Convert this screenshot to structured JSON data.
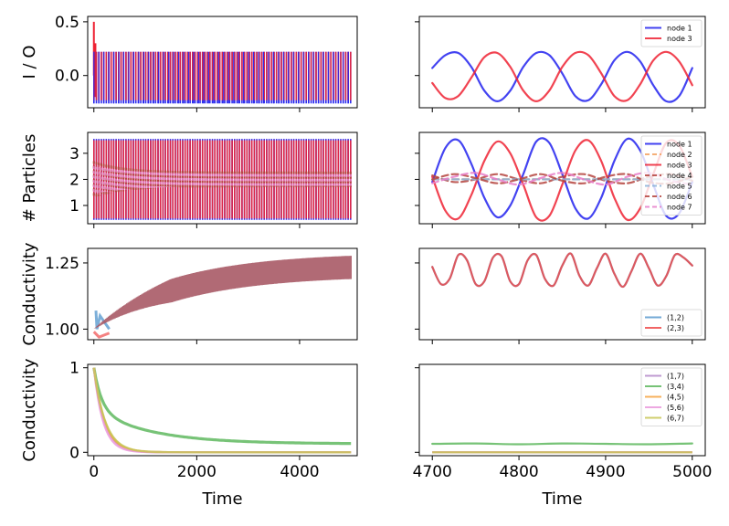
{
  "chart_data": [
    {
      "type": "line",
      "panel": "left-1",
      "ylabel": "I / O",
      "xlabel": "",
      "xlim": [
        -120,
        5120
      ],
      "ylim": [
        -0.3,
        0.55
      ],
      "yticks": [
        0.0,
        0.5
      ],
      "ytick_labels": [
        "0.0",
        "0.5"
      ],
      "xticks": [
        0,
        2000,
        4000
      ],
      "x_tick_labels_shown": false,
      "series": [
        {
          "name": "node 1",
          "color": "#2222ee",
          "kind": "band",
          "initial": 0.5,
          "upper": 0.22,
          "lower": -0.26,
          "x": [
            0,
            5000
          ]
        },
        {
          "name": "node 3",
          "color": "#ee2233",
          "kind": "band",
          "initial": 0.5,
          "upper": 0.22,
          "lower": -0.23,
          "x": [
            0,
            5000
          ]
        }
      ]
    },
    {
      "type": "line",
      "panel": "right-1",
      "xlim": [
        4685,
        5015
      ],
      "ylim": [
        -0.3,
        0.55
      ],
      "xticks": [
        4700,
        4800,
        4900,
        5000
      ],
      "legend": "top-right",
      "series": [
        {
          "name": "node 1",
          "color": "#2222ee",
          "style": "solid",
          "x": [
            4700,
            4715,
            4730,
            4745,
            4760,
            4775,
            4790,
            4805,
            4820,
            4835,
            4850,
            4865,
            4880,
            4895,
            4910,
            4925,
            4940,
            4955,
            4970,
            4985,
            5000
          ],
          "y": [
            0.07,
            0.19,
            0.21,
            0.08,
            -0.14,
            -0.24,
            -0.14,
            0.08,
            0.21,
            0.19,
            0.02,
            -0.19,
            -0.23,
            -0.08,
            0.14,
            0.22,
            0.13,
            -0.09,
            -0.24,
            -0.19,
            0.07
          ]
        },
        {
          "name": "node 3",
          "color": "#ee2233",
          "style": "solid",
          "x": [
            4700,
            4715,
            4730,
            4745,
            4760,
            4775,
            4790,
            4805,
            4820,
            4835,
            4850,
            4865,
            4880,
            4895,
            4910,
            4925,
            4940,
            4955,
            4970,
            4985,
            5000
          ],
          "y": [
            -0.07,
            -0.21,
            -0.19,
            -0.02,
            0.17,
            0.21,
            0.08,
            -0.14,
            -0.24,
            -0.14,
            0.08,
            0.21,
            0.19,
            0.02,
            -0.19,
            -0.23,
            -0.08,
            0.14,
            0.22,
            0.13,
            -0.09
          ]
        }
      ]
    },
    {
      "type": "line",
      "panel": "left-2",
      "ylabel": "# Particles",
      "xlim": [
        -120,
        5120
      ],
      "ylim": [
        0.3,
        3.8
      ],
      "yticks": [
        1,
        2,
        3
      ],
      "ytick_labels": [
        "1",
        "2",
        "3"
      ],
      "xticks": [
        0,
        2000,
        4000
      ],
      "x_tick_labels_shown": false,
      "series": [
        {
          "name": "node 1",
          "color": "#2222ee",
          "kind": "band",
          "upper": 3.55,
          "lower": 0.45
        },
        {
          "name": "node 3",
          "color": "#ee2233",
          "kind": "band",
          "upper": 3.5,
          "lower": 0.5
        },
        {
          "name": "node 4",
          "color": "#b5443e",
          "kind": "band",
          "upper": 2.3,
          "lower": 1.7,
          "dashed": true
        },
        {
          "name": "node 5",
          "color": "#e77ec9",
          "kind": "band",
          "upper": 2.2,
          "lower": 1.75,
          "dashed": true
        }
      ]
    },
    {
      "type": "line",
      "panel": "right-2",
      "xlim": [
        4685,
        5015
      ],
      "ylim": [
        0.3,
        3.8
      ],
      "xticks": [
        4700,
        4800,
        4900,
        5000
      ],
      "legend": "top-right",
      "series": [
        {
          "name": "node 1",
          "color": "#2222ee",
          "style": "solid",
          "x": [
            4700,
            4715,
            4730,
            4745,
            4760,
            4775,
            4790,
            4805,
            4820,
            4835,
            4850,
            4865,
            4880,
            4895,
            4910,
            4925,
            4940,
            4955,
            4970,
            4985,
            5000
          ],
          "y": [
            1.9,
            3.2,
            3.5,
            2.6,
            1.3,
            0.55,
            1.0,
            2.2,
            3.45,
            3.4,
            2.2,
            0.9,
            0.5,
            1.3,
            2.7,
            3.55,
            3.1,
            1.8,
            0.6,
            0.7,
            1.9
          ]
        },
        {
          "name": "node 2",
          "color": "#f4a261",
          "style": "dashed",
          "x": [
            4700,
            4800,
            4900,
            5000
          ],
          "y": [
            2.0,
            2.0,
            2.0,
            2.0
          ]
        },
        {
          "name": "node 3",
          "color": "#ee2233",
          "style": "solid",
          "x": [
            4700,
            4715,
            4730,
            4745,
            4760,
            4775,
            4790,
            4805,
            4820,
            4835,
            4850,
            4865,
            4880,
            4895,
            4910,
            4925,
            4940,
            4955,
            4970,
            4985,
            5000
          ],
          "y": [
            2.1,
            0.8,
            0.5,
            1.4,
            2.7,
            3.45,
            3.0,
            1.8,
            0.55,
            0.6,
            1.8,
            3.1,
            3.5,
            2.7,
            1.3,
            0.45,
            0.9,
            2.2,
            3.4,
            3.3,
            2.1
          ]
        },
        {
          "name": "node 4",
          "color": "#b5443e",
          "style": "dashed",
          "x": [
            4700,
            4725,
            4750,
            4775,
            4800,
            4825,
            4850,
            4875,
            4900,
            4925,
            4950,
            4975,
            5000
          ],
          "y": [
            2.15,
            1.9,
            2.0,
            2.2,
            2.0,
            1.85,
            2.1,
            2.2,
            1.95,
            1.85,
            2.1,
            2.2,
            1.95
          ]
        },
        {
          "name": "node 5",
          "color": "#8ab2d9",
          "style": "dashed",
          "x": [
            4700,
            4800,
            4900,
            5000
          ],
          "y": [
            2.0,
            2.0,
            2.0,
            2.0
          ]
        },
        {
          "name": "node 6",
          "color": "#b5443e",
          "style": "dashed",
          "x": [
            4700,
            4725,
            4750,
            4775,
            4800,
            4825,
            4850,
            4875,
            4900,
            4925,
            4950,
            4975,
            5000
          ],
          "y": [
            2.0,
            2.2,
            2.05,
            1.85,
            2.0,
            2.2,
            1.95,
            1.85,
            2.1,
            2.2,
            1.9,
            1.85,
            2.1
          ]
        },
        {
          "name": "node 7",
          "color": "#e77ec9",
          "style": "dashed",
          "x": [
            4700,
            4725,
            4750,
            4775,
            4800,
            4825,
            4850,
            4875,
            4900,
            4925,
            4950,
            4975,
            5000
          ],
          "y": [
            1.85,
            2.1,
            2.25,
            2.0,
            1.8,
            2.05,
            2.25,
            2.0,
            1.8,
            2.1,
            2.25,
            1.95,
            1.8
          ]
        }
      ]
    },
    {
      "type": "line",
      "panel": "left-3",
      "ylabel": "Conductivity",
      "xlim": [
        -120,
        5120
      ],
      "ylim": [
        0.96,
        1.305
      ],
      "yticks": [
        1.0,
        1.25
      ],
      "ytick_labels": [
        "1.00",
        "1.25"
      ],
      "xticks": [
        0,
        2000,
        4000
      ],
      "x_tick_labels_shown": false,
      "series": [
        {
          "name": "(1,2)",
          "color": "#5b9bd0",
          "kind": "growth_band",
          "start": 1.0,
          "plateau": 1.245,
          "amplitude": 0.045
        },
        {
          "name": "(2,3)",
          "color": "#ef4b4b",
          "kind": "growth_band",
          "start": 0.98,
          "plateau": 1.245,
          "amplitude": 0.045
        }
      ]
    },
    {
      "type": "line",
      "panel": "right-3",
      "xlim": [
        4685,
        5015
      ],
      "ylim": [
        0.96,
        1.305
      ],
      "xticks": [
        4700,
        4800,
        4900,
        5000
      ],
      "legend": "bottom-right",
      "series": [
        {
          "name": "(1,2)",
          "color": "#5b9bd0",
          "style": "solid",
          "x": [
            4700,
            4710,
            4720,
            4730,
            4740,
            4750,
            4760,
            4770,
            4780,
            4790,
            4800,
            4810,
            4820,
            4830,
            4840,
            4850,
            4860,
            4870,
            4880,
            4890,
            4900,
            4910,
            4920,
            4930,
            4940,
            4950,
            4960,
            4970,
            4980,
            4990,
            5000
          ],
          "y": [
            1.235,
            1.17,
            1.19,
            1.28,
            1.26,
            1.17,
            1.18,
            1.27,
            1.275,
            1.18,
            1.17,
            1.26,
            1.28,
            1.19,
            1.165,
            1.24,
            1.285,
            1.2,
            1.165,
            1.23,
            1.285,
            1.21,
            1.16,
            1.22,
            1.285,
            1.23,
            1.165,
            1.2,
            1.28,
            1.27,
            1.24
          ]
        },
        {
          "name": "(2,3)",
          "color": "#ef4b4b",
          "style": "solid",
          "x": [
            4700,
            4710,
            4720,
            4730,
            4740,
            4750,
            4760,
            4770,
            4780,
            4790,
            4800,
            4810,
            4820,
            4830,
            4840,
            4850,
            4860,
            4870,
            4880,
            4890,
            4900,
            4910,
            4920,
            4930,
            4940,
            4950,
            4960,
            4970,
            4980,
            4990,
            5000
          ],
          "y": [
            1.235,
            1.17,
            1.19,
            1.28,
            1.26,
            1.17,
            1.18,
            1.27,
            1.275,
            1.18,
            1.17,
            1.26,
            1.28,
            1.19,
            1.165,
            1.24,
            1.285,
            1.2,
            1.165,
            1.23,
            1.285,
            1.21,
            1.16,
            1.22,
            1.285,
            1.23,
            1.165,
            1.2,
            1.28,
            1.27,
            1.24
          ]
        }
      ]
    },
    {
      "type": "line",
      "panel": "left-4",
      "ylabel": "Conductivity",
      "xlabel": "Time",
      "xlim": [
        -120,
        5120
      ],
      "ylim": [
        -0.04,
        1.04
      ],
      "yticks": [
        0,
        1
      ],
      "ytick_labels": [
        "0",
        "1"
      ],
      "xticks": [
        0,
        2000,
        4000
      ],
      "xtick_labels": [
        "0",
        "2000",
        "4000"
      ],
      "series": [
        {
          "name": "(1,7)",
          "color": "#b58ac9",
          "kind": "decay",
          "tau": 200,
          "floor": 0.0
        },
        {
          "name": "(3,4)",
          "color": "#5fb85f",
          "kind": "decay_slow",
          "floor": 0.1
        },
        {
          "name": "(4,5)",
          "color": "#f6a441",
          "kind": "decay",
          "tau": 210,
          "floor": 0.0
        },
        {
          "name": "(5,6)",
          "color": "#eb99dc",
          "kind": "decay",
          "tau": 180,
          "floor": 0.0
        },
        {
          "name": "(6,7)",
          "color": "#c7c655",
          "kind": "decay",
          "tau": 220,
          "floor": 0.0
        }
      ]
    },
    {
      "type": "line",
      "panel": "right-4",
      "xlabel": "Time",
      "xlim": [
        4685,
        5015
      ],
      "ylim": [
        -0.04,
        1.04
      ],
      "xticks": [
        4700,
        4800,
        4900,
        5000
      ],
      "xtick_labels": [
        "4700",
        "4800",
        "4900",
        "5000"
      ],
      "legend": "top-right",
      "series": [
        {
          "name": "(1,7)",
          "color": "#b58ac9",
          "style": "solid",
          "x": [
            4700,
            5000
          ],
          "y": [
            0.0,
            0.0
          ]
        },
        {
          "name": "(3,4)",
          "color": "#5fb85f",
          "style": "solid",
          "x": [
            4700,
            4750,
            4800,
            4850,
            4900,
            4950,
            5000
          ],
          "y": [
            0.1,
            0.105,
            0.095,
            0.105,
            0.1,
            0.095,
            0.105
          ]
        },
        {
          "name": "(4,5)",
          "color": "#f6a441",
          "style": "solid",
          "x": [
            4700,
            5000
          ],
          "y": [
            0.0,
            0.0
          ]
        },
        {
          "name": "(5,6)",
          "color": "#eb99dc",
          "style": "solid",
          "x": [
            4700,
            5000
          ],
          "y": [
            0.0,
            0.0
          ]
        },
        {
          "name": "(6,7)",
          "color": "#c7c655",
          "style": "solid",
          "x": [
            4700,
            5000
          ],
          "y": [
            0.0,
            0.0
          ]
        }
      ]
    }
  ]
}
